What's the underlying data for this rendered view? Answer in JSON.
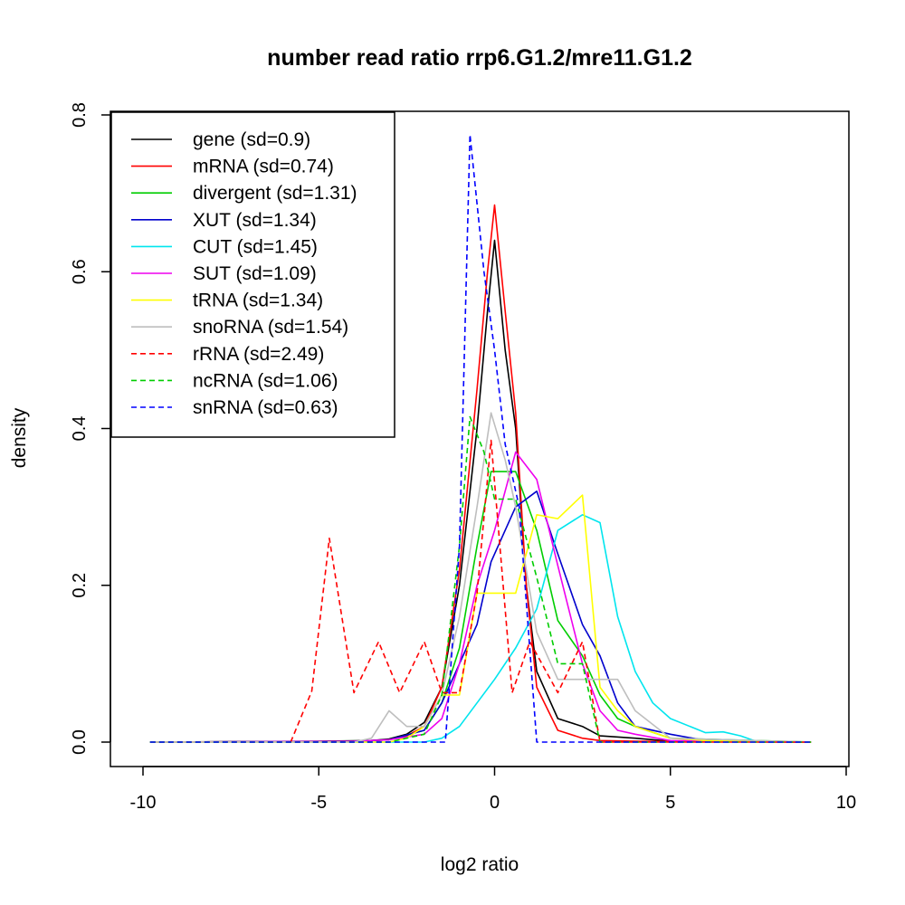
{
  "chart_data": {
    "type": "line",
    "title": "number read ratio rrp6.G1.2/mre11.G1.2",
    "xlabel": "log2 ratio",
    "ylabel": "density",
    "xlim": [
      -10,
      10
    ],
    "ylim": [
      0,
      0.8
    ],
    "xticks": [
      -10,
      -5,
      0,
      5,
      10
    ],
    "xtick_labels": [
      "-10",
      "-5",
      "0",
      "5",
      "10"
    ],
    "yticks": [
      0,
      0.2,
      0.4,
      0.6,
      0.8
    ],
    "ytick_labels": [
      "0.0",
      "0.2",
      "0.4",
      "0.6",
      "0.8"
    ],
    "grid": false,
    "legend_position": "top-left",
    "series": [
      {
        "name": "gene (sd=0.9)",
        "color": "#000000",
        "dash": "solid",
        "points": [
          [
            -9.8,
            0
          ],
          [
            -5,
            0.001
          ],
          [
            -3.5,
            0.002
          ],
          [
            -3,
            0.004
          ],
          [
            -2.5,
            0.01
          ],
          [
            -2,
            0.025
          ],
          [
            -1.5,
            0.07
          ],
          [
            -1,
            0.2
          ],
          [
            -0.5,
            0.4
          ],
          [
            -0.2,
            0.55
          ],
          [
            0,
            0.64
          ],
          [
            0.3,
            0.5
          ],
          [
            0.6,
            0.4
          ],
          [
            0.9,
            0.2
          ],
          [
            1.2,
            0.09
          ],
          [
            1.8,
            0.03
          ],
          [
            2.5,
            0.02
          ],
          [
            3,
            0.008
          ],
          [
            4,
            0.005
          ],
          [
            5,
            0.001
          ],
          [
            9,
            0
          ]
        ]
      },
      {
        "name": "mRNA (sd=0.74)",
        "color": "#ff0000",
        "dash": "solid",
        "points": [
          [
            -9.8,
            0
          ],
          [
            -4,
            0.001
          ],
          [
            -3,
            0.003
          ],
          [
            -2.5,
            0.008
          ],
          [
            -2,
            0.02
          ],
          [
            -1.5,
            0.07
          ],
          [
            -1,
            0.22
          ],
          [
            -0.5,
            0.45
          ],
          [
            -0.2,
            0.6
          ],
          [
            0,
            0.685
          ],
          [
            0.3,
            0.55
          ],
          [
            0.6,
            0.42
          ],
          [
            0.9,
            0.2
          ],
          [
            1.2,
            0.07
          ],
          [
            1.8,
            0.015
          ],
          [
            2.5,
            0.005
          ],
          [
            3,
            0.002
          ],
          [
            4,
            0.001
          ],
          [
            9,
            0
          ]
        ]
      },
      {
        "name": "divergent (sd=1.31)",
        "color": "#00cd00",
        "dash": "solid",
        "points": [
          [
            -9.8,
            0
          ],
          [
            -4,
            0.001
          ],
          [
            -3,
            0.003
          ],
          [
            -2,
            0.015
          ],
          [
            -1.5,
            0.05
          ],
          [
            -1,
            0.12
          ],
          [
            -0.5,
            0.25
          ],
          [
            -0.1,
            0.345
          ],
          [
            0.6,
            0.345
          ],
          [
            1.2,
            0.27
          ],
          [
            1.8,
            0.155
          ],
          [
            2.5,
            0.11
          ],
          [
            3,
            0.06
          ],
          [
            3.5,
            0.03
          ],
          [
            4,
            0.02
          ],
          [
            5,
            0.005
          ],
          [
            9,
            0
          ]
        ]
      },
      {
        "name": "XUT (sd=1.34)",
        "color": "#0000cd",
        "dash": "solid",
        "points": [
          [
            -9.8,
            0
          ],
          [
            -4,
            0.001
          ],
          [
            -3,
            0.003
          ],
          [
            -2,
            0.015
          ],
          [
            -1.5,
            0.05
          ],
          [
            -1,
            0.1
          ],
          [
            -0.5,
            0.15
          ],
          [
            -0.1,
            0.23
          ],
          [
            0.6,
            0.3
          ],
          [
            1.2,
            0.32
          ],
          [
            1.8,
            0.24
          ],
          [
            2.5,
            0.15
          ],
          [
            3,
            0.11
          ],
          [
            3.5,
            0.05
          ],
          [
            4,
            0.02
          ],
          [
            5,
            0.01
          ],
          [
            6,
            0.002
          ],
          [
            9,
            0
          ]
        ]
      },
      {
        "name": "CUT (sd=1.45)",
        "color": "#00e5ee",
        "dash": "solid",
        "points": [
          [
            -9.8,
            0
          ],
          [
            -2,
            0
          ],
          [
            -1.5,
            0.005
          ],
          [
            -1,
            0.02
          ],
          [
            -0.5,
            0.05
          ],
          [
            0,
            0.08
          ],
          [
            0.6,
            0.12
          ],
          [
            1.2,
            0.17
          ],
          [
            1.8,
            0.27
          ],
          [
            2.5,
            0.29
          ],
          [
            3,
            0.28
          ],
          [
            3.5,
            0.16
          ],
          [
            4,
            0.09
          ],
          [
            4.5,
            0.05
          ],
          [
            5,
            0.03
          ],
          [
            6,
            0.012
          ],
          [
            6.5,
            0.013
          ],
          [
            7,
            0.008
          ],
          [
            7.5,
            0
          ],
          [
            9,
            0
          ]
        ]
      },
      {
        "name": "SUT (sd=1.09)",
        "color": "#ee00ee",
        "dash": "solid",
        "points": [
          [
            -9.8,
            0
          ],
          [
            -4,
            0.001
          ],
          [
            -3,
            0.003
          ],
          [
            -2,
            0.01
          ],
          [
            -1.5,
            0.03
          ],
          [
            -1,
            0.1
          ],
          [
            -0.5,
            0.2
          ],
          [
            0,
            0.27
          ],
          [
            0.6,
            0.37
          ],
          [
            1.2,
            0.335
          ],
          [
            1.8,
            0.225
          ],
          [
            2.5,
            0.1
          ],
          [
            3,
            0.04
          ],
          [
            3.5,
            0.015
          ],
          [
            4,
            0.01
          ],
          [
            5,
            0.002
          ],
          [
            9,
            0
          ]
        ]
      },
      {
        "name": "tRNA (sd=1.34)",
        "color": "#ffff00",
        "dash": "solid",
        "points": [
          [
            -9.8,
            0
          ],
          [
            -3,
            0
          ],
          [
            -2.5,
            0.005
          ],
          [
            -2,
            0.02
          ],
          [
            -1.5,
            0.06
          ],
          [
            -1,
            0.06
          ],
          [
            -0.5,
            0.19
          ],
          [
            0,
            0.19
          ],
          [
            0.6,
            0.19
          ],
          [
            1.2,
            0.29
          ],
          [
            1.8,
            0.285
          ],
          [
            2.5,
            0.315
          ],
          [
            3,
            0.07
          ],
          [
            3.5,
            0.04
          ],
          [
            4,
            0.02
          ],
          [
            5,
            0.005
          ],
          [
            6,
            0.002
          ],
          [
            9,
            0
          ]
        ]
      },
      {
        "name": "snoRNA (sd=1.54)",
        "color": "#bebebe",
        "dash": "solid",
        "points": [
          [
            -9.8,
            0
          ],
          [
            -4,
            0
          ],
          [
            -3.5,
            0.005
          ],
          [
            -3,
            0.04
          ],
          [
            -2.5,
            0.02
          ],
          [
            -2,
            0.02
          ],
          [
            -1.5,
            0.06
          ],
          [
            -1,
            0.16
          ],
          [
            -0.5,
            0.3
          ],
          [
            -0.1,
            0.42
          ],
          [
            0.3,
            0.36
          ],
          [
            0.6,
            0.3
          ],
          [
            1.2,
            0.14
          ],
          [
            1.8,
            0.08
          ],
          [
            2.5,
            0.08
          ],
          [
            3,
            0.08
          ],
          [
            3.5,
            0.08
          ],
          [
            4,
            0.04
          ],
          [
            5,
            0.005
          ],
          [
            9,
            0
          ]
        ]
      },
      {
        "name": "rRNA (sd=2.49)",
        "color": "#ff0000",
        "dash": "dashed",
        "points": [
          [
            -5.8,
            0
          ],
          [
            -5.2,
            0.065
          ],
          [
            -4.7,
            0.26
          ],
          [
            -4,
            0.063
          ],
          [
            -3.3,
            0.128
          ],
          [
            -2.7,
            0.063
          ],
          [
            -2,
            0.128
          ],
          [
            -1.5,
            0.063
          ],
          [
            -1,
            0.063
          ],
          [
            -0.5,
            0.19
          ],
          [
            -0.1,
            0.385
          ],
          [
            0.5,
            0.063
          ],
          [
            1,
            0.128
          ],
          [
            1.8,
            0.063
          ],
          [
            2.5,
            0.128
          ],
          [
            3,
            0
          ],
          [
            9,
            0
          ]
        ]
      },
      {
        "name": "ncRNA (sd=1.06)",
        "color": "#00cd00",
        "dash": "dashed",
        "points": [
          [
            -9.8,
            0
          ],
          [
            -3,
            0
          ],
          [
            -2,
            0.01
          ],
          [
            -1.5,
            0.06
          ],
          [
            -1,
            0.25
          ],
          [
            -0.7,
            0.415
          ],
          [
            -0.3,
            0.37
          ],
          [
            0,
            0.31
          ],
          [
            0.6,
            0.31
          ],
          [
            1.2,
            0.21
          ],
          [
            1.8,
            0.1
          ],
          [
            2.5,
            0.1
          ],
          [
            3,
            0
          ],
          [
            9,
            0
          ]
        ]
      },
      {
        "name": "snRNA (sd=0.63)",
        "color": "#0000ff",
        "dash": "dashed",
        "points": [
          [
            -9.8,
            0
          ],
          [
            -1.4,
            0
          ],
          [
            -1,
            0.25
          ],
          [
            -0.7,
            0.775
          ],
          [
            -0.3,
            0.6
          ],
          [
            0,
            0.5
          ],
          [
            0.3,
            0.38
          ],
          [
            0.7,
            0.3
          ],
          [
            1.2,
            0
          ],
          [
            9,
            0
          ]
        ]
      }
    ]
  }
}
